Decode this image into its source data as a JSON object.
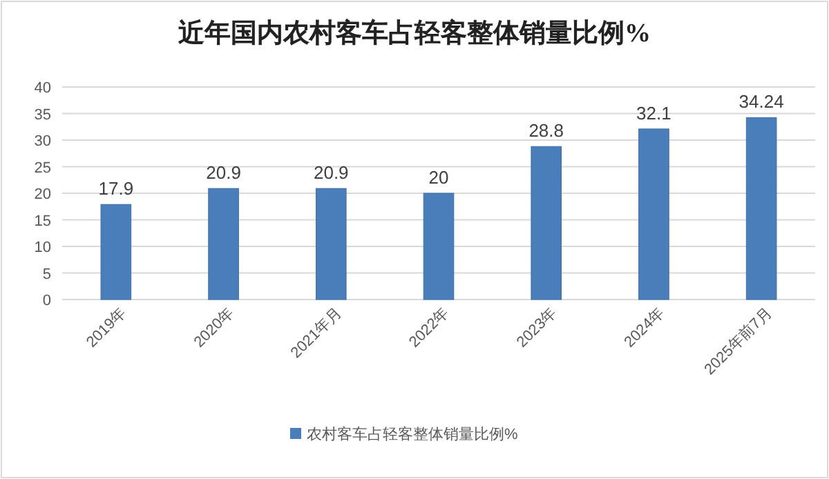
{
  "chart_data": {
    "type": "bar",
    "title": "近年国内农村客车占轻客整体销量比例%",
    "categories": [
      "2019年",
      "2020年",
      "2021年月",
      "2022年",
      "2023年",
      "2024年",
      "2025年前7月"
    ],
    "series": [
      {
        "name": "农村客车占轻客整体销量比例%",
        "color": "#4a7ebb",
        "values": [
          17.9,
          20.9,
          20.9,
          20,
          28.8,
          32.1,
          34.24
        ]
      }
    ],
    "ylim": [
      0,
      40
    ],
    "yticks": [
      0,
      5,
      10,
      15,
      20,
      25,
      30,
      35,
      40
    ],
    "grid": "y",
    "legend": "bottom",
    "data_labels": true
  }
}
